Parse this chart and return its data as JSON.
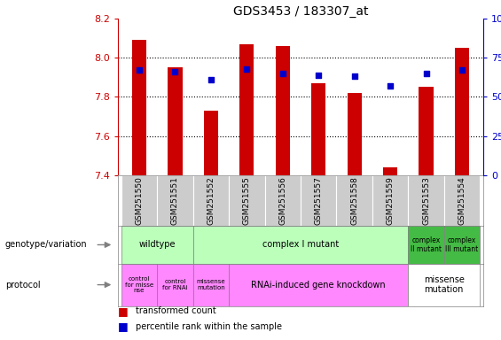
{
  "title": "GDS3453 / 183307_at",
  "samples": [
    "GSM251550",
    "GSM251551",
    "GSM251552",
    "GSM251555",
    "GSM251556",
    "GSM251557",
    "GSM251558",
    "GSM251559",
    "GSM251553",
    "GSM251554"
  ],
  "transformed_count": [
    8.09,
    7.95,
    7.73,
    8.07,
    8.06,
    7.87,
    7.82,
    7.44,
    7.85,
    8.05
  ],
  "percentile_rank": [
    67,
    66,
    61,
    68,
    65,
    64,
    63,
    57,
    65,
    67
  ],
  "ylim": [
    7.4,
    8.2
  ],
  "yticks": [
    7.4,
    7.6,
    7.8,
    8.0,
    8.2
  ],
  "y2ticks": [
    0,
    25,
    50,
    75,
    100
  ],
  "bar_color": "#cc0000",
  "dot_color": "#0000cc",
  "left_axis_color": "#cc0000",
  "right_axis_color": "#0000cc",
  "sample_bg_color": "#cccccc",
  "geno_groups": [
    {
      "cols": [
        0,
        1
      ],
      "color": "#bbffbb",
      "label": "wildtype",
      "fontsize": 7
    },
    {
      "cols": [
        2,
        3,
        4,
        5,
        6,
        7
      ],
      "color": "#bbffbb",
      "label": "complex I mutant",
      "fontsize": 7
    },
    {
      "cols": [
        8
      ],
      "color": "#44bb44",
      "label": "complex\nII mutant",
      "fontsize": 5.5
    },
    {
      "cols": [
        9
      ],
      "color": "#44bb44",
      "label": "complex\nIII mutant",
      "fontsize": 5.5
    }
  ],
  "proto_groups": [
    {
      "cols": [
        0
      ],
      "color": "#ff88ff",
      "label": "control\nfor misse\nnse",
      "fontsize": 5
    },
    {
      "cols": [
        1
      ],
      "color": "#ff88ff",
      "label": "control\nfor RNAi",
      "fontsize": 5
    },
    {
      "cols": [
        2
      ],
      "color": "#ff88ff",
      "label": "missense\nmutation",
      "fontsize": 5
    },
    {
      "cols": [
        3,
        4,
        5,
        6,
        7
      ],
      "color": "#ff88ff",
      "label": "RNAi-induced gene knockdown",
      "fontsize": 7
    },
    {
      "cols": [
        8,
        9
      ],
      "color": "#ffffff",
      "label": "missense\nmutation",
      "fontsize": 7
    }
  ],
  "legend_items": [
    {
      "color": "#cc0000",
      "label": "transformed count"
    },
    {
      "color": "#0000cc",
      "label": "percentile rank within the sample"
    }
  ]
}
